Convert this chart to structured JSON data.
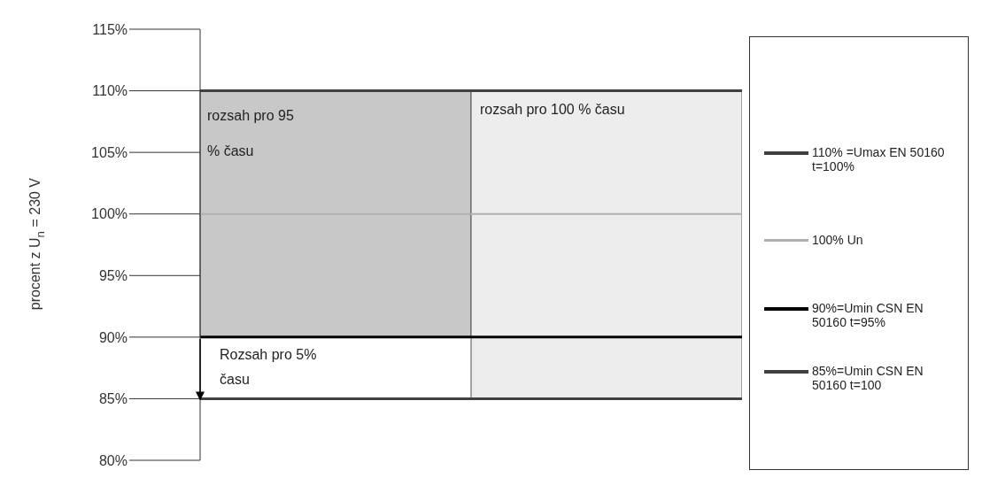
{
  "chart_data": {
    "type": "bar",
    "ylabel": "procent z U$_{n}$ = 230 V",
    "categories": [
      null,
      null
    ],
    "base": [
      90,
      85
    ],
    "values": [
      20,
      25
    ],
    "colors": [
      "#c8c8c8",
      "#ededed"
    ],
    "ylim": [
      80,
      115
    ],
    "yticks": [
      {
        "value": 80,
        "label": "80%"
      },
      {
        "value": 85,
        "label": "85%"
      },
      {
        "value": 90,
        "label": "90%"
      },
      {
        "value": 95,
        "label": "95%"
      },
      {
        "value": 100,
        "label": "100%"
      },
      {
        "value": 105,
        "label": "105%"
      },
      {
        "value": 110,
        "label": "110%"
      },
      {
        "value": 115,
        "label": "115%"
      }
    ],
    "ref_lines": [
      {
        "axis": "y",
        "value": 110,
        "label": "110% =Umax EN 50160 t=100%",
        "color": "#404040"
      },
      {
        "axis": "y",
        "value": 100,
        "label": "100% Un",
        "color": "#b0b0b0"
      },
      {
        "axis": "y",
        "value": 90,
        "label": "90%=Umin CSN EN 50160 t=95%",
        "color": "#000000"
      },
      {
        "axis": "y",
        "value": 85,
        "label": "85%=Umin CSN EN 50160 t=100",
        "color": "#404040"
      }
    ],
    "annotations": [
      "rozsah pro 95 % času",
      "rozsah pro 100 % času",
      "Rozsah pro 5% času"
    ],
    "legend": "right",
    "grid": false
  }
}
